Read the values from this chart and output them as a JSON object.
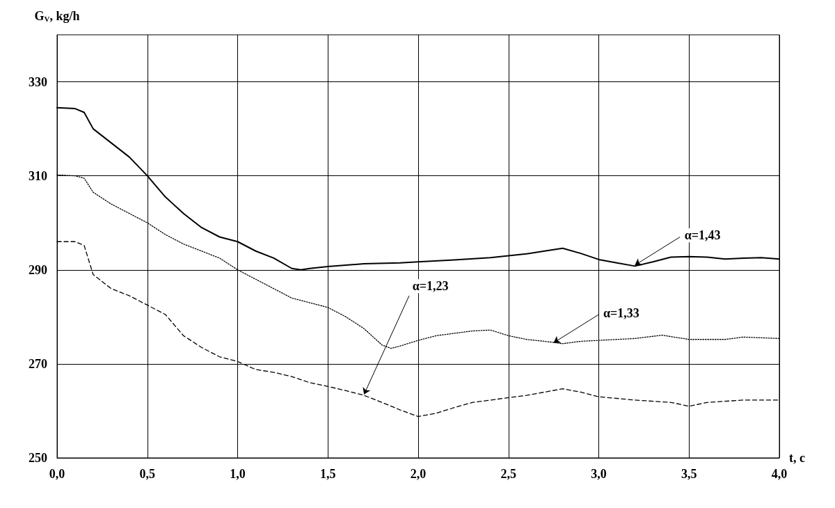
{
  "chart_data": {
    "type": "line",
    "xlabel": "t, c",
    "ylabel": "G$_{V}$, kg/h",
    "xlim": [
      0,
      4
    ],
    "ylim": [
      250,
      340
    ],
    "xticks": [
      {
        "value": 0,
        "label": "0,0"
      },
      {
        "value": 0.5,
        "label": "0,5"
      },
      {
        "value": 1,
        "label": "1,0"
      },
      {
        "value": 1.5,
        "label": "1,5"
      },
      {
        "value": 2,
        "label": "2,0"
      },
      {
        "value": 2.5,
        "label": "2,5"
      },
      {
        "value": 3,
        "label": "3,0"
      },
      {
        "value": 3.5,
        "label": "3,5"
      },
      {
        "value": 4,
        "label": "4,0"
      }
    ],
    "yticks": [
      250,
      270,
      290,
      310,
      330
    ],
    "grid": true,
    "marker": "none",
    "series": [
      {
        "color": "#000000",
        "line_style": "solid",
        "x": [
          0,
          0.1,
          0.15,
          0.2,
          0.3,
          0.4,
          0.5,
          0.6,
          0.7,
          0.8,
          0.9,
          1.0,
          1.1,
          1.2,
          1.3,
          1.35,
          1.4,
          1.5,
          1.7,
          1.9,
          2.0,
          2.2,
          2.4,
          2.6,
          2.7,
          2.8,
          2.9,
          3.0,
          3.1,
          3.2,
          3.3,
          3.4,
          3.5,
          3.6,
          3.7,
          3.8,
          3.9,
          4.0
        ],
        "values": [
          324.5,
          324.3,
          323.5,
          320,
          317,
          314,
          310,
          305.5,
          302,
          299,
          297,
          296,
          294,
          292.5,
          290.3,
          290,
          290.3,
          290.7,
          291.3,
          291.5,
          291.7,
          292.1,
          292.6,
          293.4,
          294,
          294.6,
          293.5,
          292.2,
          291.5,
          290.8,
          291.7,
          292.7,
          292.8,
          292.7,
          292.3,
          292.5,
          292.6,
          292.3
        ]
      },
      {
        "color": "#000000",
        "line_style": "dotted",
        "x": [
          0,
          0.1,
          0.15,
          0.2,
          0.3,
          0.4,
          0.5,
          0.6,
          0.7,
          0.8,
          0.9,
          1.0,
          1.1,
          1.2,
          1.3,
          1.4,
          1.5,
          1.6,
          1.7,
          1.8,
          1.85,
          1.9,
          2.0,
          2.1,
          2.2,
          2.3,
          2.4,
          2.5,
          2.6,
          2.7,
          2.8,
          2.9,
          3.0,
          3.2,
          3.35,
          3.5,
          3.7,
          3.8,
          4.0
        ],
        "values": [
          310.2,
          310,
          309.5,
          306.5,
          304,
          302,
          300,
          297.5,
          295.5,
          294,
          292.5,
          290,
          288,
          286,
          284,
          283,
          282,
          280,
          277.5,
          274,
          273.3,
          273.8,
          275,
          276,
          276.5,
          277,
          277.2,
          276,
          275.2,
          274.8,
          274.3,
          274.8,
          275,
          275.4,
          276.1,
          275.2,
          275.2,
          275.7,
          275.4
        ]
      },
      {
        "color": "#000000",
        "line_style": "dashed",
        "x": [
          0,
          0.1,
          0.15,
          0.2,
          0.3,
          0.4,
          0.5,
          0.6,
          0.7,
          0.8,
          0.9,
          1.0,
          1.1,
          1.2,
          1.3,
          1.4,
          1.5,
          1.6,
          1.7,
          1.8,
          1.9,
          2.0,
          2.1,
          2.2,
          2.3,
          2.4,
          2.6,
          2.8,
          2.9,
          3.0,
          3.2,
          3.4,
          3.5,
          3.6,
          3.8,
          4.0
        ],
        "values": [
          296,
          296,
          295.2,
          289,
          286,
          284.5,
          282.5,
          280.5,
          276,
          273.5,
          271.5,
          270.5,
          268.8,
          268.2,
          267.3,
          266,
          265.2,
          264.3,
          263.3,
          261.8,
          260.2,
          258.8,
          259.5,
          260.7,
          261.8,
          262.3,
          263.3,
          264.7,
          264,
          263,
          262.3,
          261.8,
          261,
          261.8,
          262.3,
          262.3
        ]
      }
    ],
    "annotations": [
      {
        "text": "α=1,43",
        "x": 3.2,
        "y": 291
      },
      {
        "text": "α=1,33",
        "x": 2.75,
        "y": 274.5
      },
      {
        "text": "α=1,23",
        "x": 1.7,
        "y": 263.5
      }
    ]
  }
}
